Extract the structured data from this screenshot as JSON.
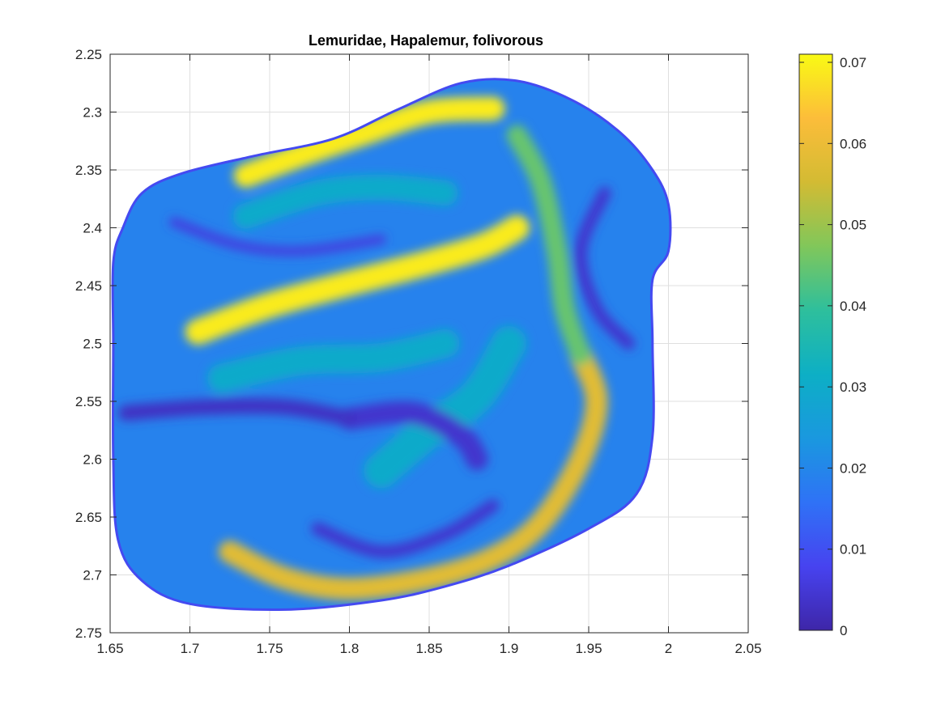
{
  "chart_data": {
    "type": "heatmap",
    "title": "Lemuridae, Hapalemur, folivorous",
    "xlabel": "",
    "ylabel": "",
    "xlim": [
      1.65,
      2.05
    ],
    "ylim": [
      2.25,
      2.75
    ],
    "y_axis_reversed": true,
    "x_ticks": [
      "1.65",
      "1.7",
      "1.75",
      "1.8",
      "1.85",
      "1.9",
      "1.95",
      "2",
      "2.05"
    ],
    "y_ticks": [
      "2.25",
      "2.3",
      "2.35",
      "2.4",
      "2.45",
      "2.5",
      "2.55",
      "2.6",
      "2.65",
      "2.7",
      "2.75"
    ],
    "grid": true,
    "colormap": "parula",
    "clim": [
      0,
      0.071
    ],
    "colorbar_ticks": [
      "0",
      "0.01",
      "0.02",
      "0.03",
      "0.04",
      "0.05",
      "0.06",
      "0.07"
    ],
    "colorbar_position": "right",
    "colormap_stops": [
      "#3e26a8",
      "#4743f0",
      "#2f72f6",
      "#1a98df",
      "#0dafc5",
      "#2ebf9c",
      "#81c75a",
      "#d3bb33",
      "#fcbd3a",
      "#f9fa14"
    ],
    "surface_outline": [
      [
        1.67,
        2.37
      ],
      [
        1.695,
        2.353
      ],
      [
        1.74,
        2.338
      ],
      [
        1.79,
        2.323
      ],
      [
        1.83,
        2.298
      ],
      [
        1.87,
        2.275
      ],
      [
        1.905,
        2.273
      ],
      [
        1.94,
        2.29
      ],
      [
        1.97,
        2.318
      ],
      [
        1.99,
        2.35
      ],
      [
        2.0,
        2.38
      ],
      [
        2.0,
        2.42
      ],
      [
        1.99,
        2.445
      ],
      [
        1.99,
        2.5
      ],
      [
        1.99,
        2.58
      ],
      [
        1.98,
        2.63
      ],
      [
        1.95,
        2.66
      ],
      [
        1.9,
        2.692
      ],
      [
        1.86,
        2.71
      ],
      [
        1.82,
        2.722
      ],
      [
        1.76,
        2.73
      ],
      [
        1.7,
        2.725
      ],
      [
        1.67,
        2.705
      ],
      [
        1.655,
        2.67
      ],
      [
        1.652,
        2.6
      ],
      [
        1.652,
        2.5
      ],
      [
        1.652,
        2.43
      ],
      [
        1.658,
        2.4
      ]
    ],
    "bands": [
      {
        "value": 0.069,
        "width": 0.015,
        "points": [
          [
            1.735,
            2.355
          ],
          [
            1.77,
            2.337
          ],
          [
            1.81,
            2.318
          ],
          [
            1.85,
            2.3
          ],
          [
            1.89,
            2.297
          ]
        ]
      },
      {
        "value": 0.069,
        "width": 0.016,
        "points": [
          [
            1.705,
            2.49
          ],
          [
            1.75,
            2.467
          ],
          [
            1.8,
            2.448
          ],
          [
            1.85,
            2.43
          ],
          [
            1.885,
            2.415
          ],
          [
            1.905,
            2.4
          ]
        ]
      },
      {
        "value": 0.058,
        "width": 0.014,
        "points": [
          [
            1.725,
            2.68
          ],
          [
            1.76,
            2.703
          ],
          [
            1.8,
            2.712
          ],
          [
            1.85,
            2.703
          ],
          [
            1.89,
            2.685
          ],
          [
            1.92,
            2.655
          ],
          [
            1.945,
            2.6
          ],
          [
            1.955,
            2.55
          ],
          [
            1.945,
            2.51
          ]
        ]
      },
      {
        "value": 0.045,
        "width": 0.013,
        "points": [
          [
            1.905,
            2.32
          ],
          [
            1.92,
            2.36
          ],
          [
            1.93,
            2.42
          ],
          [
            1.935,
            2.47
          ],
          [
            1.945,
            2.51
          ]
        ]
      },
      {
        "value": 0.03,
        "width": 0.018,
        "points": [
          [
            1.72,
            2.53
          ],
          [
            1.77,
            2.515
          ],
          [
            1.82,
            2.512
          ],
          [
            1.86,
            2.5
          ]
        ]
      },
      {
        "value": 0.03,
        "width": 0.016,
        "points": [
          [
            1.735,
            2.39
          ],
          [
            1.78,
            2.37
          ],
          [
            1.82,
            2.365
          ],
          [
            1.86,
            2.37
          ]
        ]
      },
      {
        "value": 0.03,
        "width": 0.022,
        "points": [
          [
            1.82,
            2.61
          ],
          [
            1.85,
            2.575
          ],
          [
            1.88,
            2.545
          ],
          [
            1.9,
            2.5
          ]
        ]
      },
      {
        "value": 0.004,
        "width": 0.014,
        "points": [
          [
            1.8,
            2.565
          ],
          [
            1.84,
            2.56
          ],
          [
            1.87,
            2.58
          ],
          [
            1.88,
            2.6
          ]
        ]
      },
      {
        "value": 0.003,
        "width": 0.01,
        "points": [
          [
            1.66,
            2.56
          ],
          [
            1.71,
            2.555
          ],
          [
            1.76,
            2.555
          ],
          [
            1.8,
            2.565
          ]
        ]
      },
      {
        "value": 0.004,
        "width": 0.008,
        "points": [
          [
            1.96,
            2.37
          ],
          [
            1.945,
            2.42
          ],
          [
            1.955,
            2.47
          ],
          [
            1.975,
            2.5
          ]
        ]
      },
      {
        "value": 0.006,
        "width": 0.006,
        "points": [
          [
            1.69,
            2.395
          ],
          [
            1.73,
            2.415
          ],
          [
            1.77,
            2.42
          ],
          [
            1.82,
            2.41
          ]
        ]
      },
      {
        "value": 0.004,
        "width": 0.008,
        "points": [
          [
            1.78,
            2.66
          ],
          [
            1.82,
            2.68
          ],
          [
            1.86,
            2.665
          ],
          [
            1.89,
            2.64
          ]
        ]
      }
    ]
  }
}
